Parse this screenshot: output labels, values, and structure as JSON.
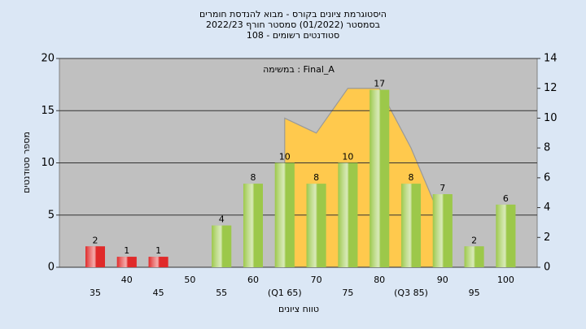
{
  "chart_data": {
    "type": "bar",
    "title": "היסטוגרמת ציונים בקורס - מבוא להנדסת חומרים",
    "subtitle": "בסמסטר  (01/2022)  סמסטר חורף 2022/23",
    "subtitle2": "סטודנטים רשומים - 108",
    "annotation": "במשימה : Final_A",
    "ylabel": "מספר סטודנטים",
    "xlabel": "טווח ציונים",
    "categories": [
      "35",
      "40",
      "45",
      "50",
      "55",
      "60",
      "(Q1 65)",
      "70",
      "75",
      "80",
      "(Q3 85)",
      "90",
      "95",
      "100"
    ],
    "values": [
      2,
      1,
      1,
      null,
      4,
      8,
      10,
      8,
      10,
      17,
      8,
      7,
      2,
      6
    ],
    "colors": [
      "#e02a2a",
      "#e02a2a",
      "#e02a2a",
      "#9cc84a",
      "#9cc84a",
      "#9cc84a",
      "#9cc84a",
      "#9cc84a",
      "#9cc84a",
      "#9cc84a",
      "#9cc84a",
      "#9cc84a",
      "#9cc84a",
      "#9cc84a"
    ],
    "ylim": [
      0,
      20
    ],
    "yticks": [
      0,
      5,
      10,
      15,
      20
    ],
    "y2lim": [
      0,
      14
    ],
    "y2ticks": [
      0,
      2,
      4,
      6,
      8,
      10,
      12,
      14
    ],
    "grid": true,
    "curve": {
      "axis": "y2",
      "color": "#ffc94d",
      "values": [
        null,
        null,
        null,
        null,
        null,
        null,
        10,
        9,
        12,
        12,
        8,
        3,
        null,
        null
      ]
    }
  }
}
